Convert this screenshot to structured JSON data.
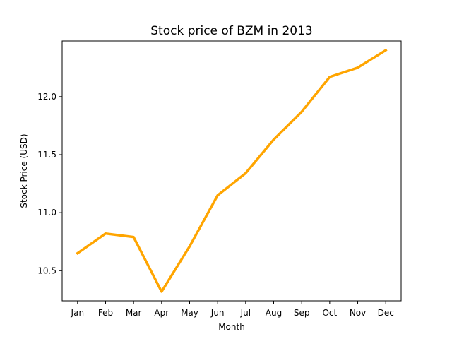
{
  "chart_data": {
    "type": "line",
    "title": "Stock price of BZM in 2013",
    "xlabel": "Month",
    "ylabel": "Stock Price (USD)",
    "categories": [
      "Jan",
      "Feb",
      "Mar",
      "Apr",
      "May",
      "Jun",
      "Jul",
      "Aug",
      "Sep",
      "Oct",
      "Nov",
      "Dec"
    ],
    "series": [
      {
        "values": [
          10.65,
          10.82,
          10.79,
          10.32,
          10.71,
          11.15,
          11.34,
          11.63,
          11.87,
          12.17,
          12.25,
          12.4
        ],
        "color": "#FFA500"
      }
    ],
    "ylim": [
      10.24,
      12.48
    ],
    "yticks": [
      "10.5",
      "11.0",
      "11.5",
      "12.0"
    ],
    "grid": false,
    "legend": "none"
  }
}
